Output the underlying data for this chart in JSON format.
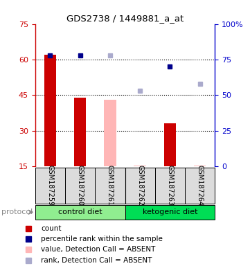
{
  "title": "GDS2738 / 1449881_a_at",
  "samples": [
    "GSM187259",
    "GSM187260",
    "GSM187261",
    "GSM187262",
    "GSM187263",
    "GSM187264"
  ],
  "left_ylim": [
    15,
    75
  ],
  "left_yticks": [
    15,
    30,
    45,
    60,
    75
  ],
  "right_ytick_positions": [
    15,
    30,
    45,
    60,
    75
  ],
  "right_ytick_labels": [
    "0",
    "25",
    "50",
    "75",
    "100%"
  ],
  "red_bars": [
    62,
    44,
    0,
    0,
    33,
    0
  ],
  "pink_bars": [
    0,
    0,
    43,
    15.3,
    0,
    15.3
  ],
  "blue_squares_pct": [
    78,
    78,
    0,
    0,
    70,
    0
  ],
  "lightblue_squares_pct": [
    0,
    0,
    78,
    53,
    0,
    58
  ],
  "protocol_groups": [
    {
      "label": "control diet",
      "start": 0,
      "end": 3,
      "color": "#90EE90"
    },
    {
      "label": "ketogenic diet",
      "start": 3,
      "end": 6,
      "color": "#00DD55"
    }
  ],
  "bar_width": 0.4,
  "red_color": "#CC0000",
  "pink_color": "#FFB6B6",
  "blue_color": "#00008B",
  "lightblue_color": "#AAAACC",
  "bg_color": "#DCDCDC",
  "plot_bg": "#FFFFFF",
  "left_axis_color": "#CC0000",
  "right_axis_color": "#0000CC",
  "legend_items": [
    {
      "label": "count",
      "color": "#CC0000"
    },
    {
      "label": "percentile rank within the sample",
      "color": "#00008B"
    },
    {
      "label": "value, Detection Call = ABSENT",
      "color": "#FFB6B6"
    },
    {
      "label": "rank, Detection Call = ABSENT",
      "color": "#AAAACC"
    }
  ],
  "protocol_label": "protocol",
  "figsize": [
    3.61,
    3.84
  ],
  "dpi": 100
}
